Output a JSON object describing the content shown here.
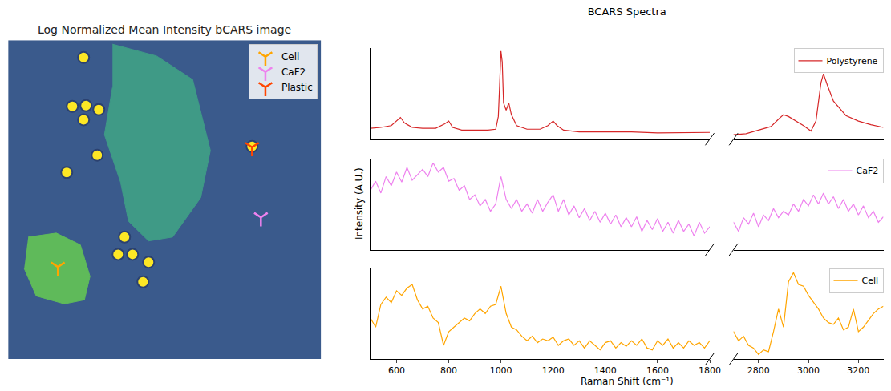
{
  "chart_data": [
    {
      "type": "scatter",
      "title": "Log Normalized Mean Intensity bCARS image",
      "xlim": [
        0,
        390
      ],
      "ylim": [
        405,
        0
      ],
      "tick_labels": false,
      "color": "#3a5a8c",
      "legend": "upper right",
      "regions": [
        {
          "x": [
            130,
            185,
            230,
            252,
            240,
            205,
            175,
            150,
            140,
            120,
            130
          ],
          "y": [
            5,
            20,
            50,
            140,
            200,
            250,
            255,
            230,
            180,
            120,
            60
          ],
          "color": "#3f9a86"
        },
        {
          "x": [
            25,
            60,
            90,
            102,
            95,
            70,
            35,
            20
          ],
          "y": [
            250,
            245,
            260,
            300,
            330,
            335,
            325,
            290
          ],
          "color": "#5fba5a"
        }
      ],
      "beads": {
        "x": [
          94,
          80,
          97,
          113,
          94,
          111,
          73,
          304,
          145,
          137,
          155,
          175,
          168
        ],
        "y": [
          22,
          84,
          83,
          88,
          101,
          146,
          168,
          135,
          250,
          272,
          272,
          282,
          307
        ],
        "color": "#fde725"
      },
      "series": [
        {
          "name": "Cell",
          "color": "#ffa500",
          "marker": "tri_down",
          "x": [
            62
          ],
          "y": [
            288
          ]
        },
        {
          "name": "CaF2",
          "color": "#ee82ee",
          "marker": "tri_down",
          "x": [
            315
          ],
          "y": [
            225
          ]
        },
        {
          "name": "Plastic",
          "color": "#ff4500",
          "marker": "tri_down",
          "x": [
            304
          ],
          "y": [
            136
          ]
        }
      ]
    },
    {
      "type": "line",
      "title": "BCARS Spectra",
      "x_label": "Raman Shift (cm⁻¹)",
      "y_label": "Intensity (A.U.)",
      "segments": [
        {
          "xlim": [
            500,
            1800
          ],
          "xticks": [
            600,
            800,
            1000,
            1200,
            1400,
            1600,
            1800
          ]
        },
        {
          "xlim": [
            2700,
            3300
          ],
          "xticks": [
            2800,
            3000,
            3200
          ]
        }
      ],
      "ylim": [
        0,
        1
      ],
      "tick_labels": "x",
      "legend": "upper right",
      "series": [
        {
          "name": "Polystyrene",
          "color": "#d62728",
          "x": [
            500,
            540,
            580,
            600,
            615,
            630,
            660,
            700,
            750,
            785,
            800,
            815,
            850,
            900,
            950,
            980,
            990,
            995,
            1000,
            1005,
            1010,
            1020,
            1030,
            1040,
            1060,
            1100,
            1150,
            1180,
            1200,
            1215,
            1240,
            1300,
            1400,
            1500,
            1600,
            1700,
            1800,
            2700,
            2750,
            2800,
            2850,
            2880,
            2900,
            2920,
            2950,
            2980,
            3010,
            3030,
            3050,
            3060,
            3075,
            3100,
            3150,
            3200,
            3250,
            3300
          ],
          "values": [
            0.12,
            0.13,
            0.15,
            0.2,
            0.24,
            0.18,
            0.13,
            0.12,
            0.12,
            0.17,
            0.2,
            0.13,
            0.1,
            0.1,
            0.1,
            0.11,
            0.25,
            0.6,
            0.97,
            0.85,
            0.4,
            0.32,
            0.4,
            0.27,
            0.15,
            0.11,
            0.11,
            0.15,
            0.2,
            0.15,
            0.1,
            0.08,
            0.08,
            0.08,
            0.07,
            0.07,
            0.07,
            0.05,
            0.06,
            0.1,
            0.14,
            0.22,
            0.27,
            0.25,
            0.2,
            0.15,
            0.09,
            0.2,
            0.62,
            0.72,
            0.6,
            0.42,
            0.26,
            0.2,
            0.16,
            0.13
          ]
        },
        {
          "name": "CaF2",
          "color": "#ee82ee",
          "x": [
            500,
            520,
            540,
            560,
            580,
            600,
            620,
            640,
            660,
            680,
            700,
            720,
            740,
            760,
            780,
            800,
            820,
            840,
            860,
            880,
            900,
            920,
            940,
            960,
            980,
            1000,
            1020,
            1040,
            1060,
            1080,
            1100,
            1120,
            1140,
            1160,
            1180,
            1200,
            1220,
            1240,
            1260,
            1280,
            1300,
            1320,
            1340,
            1360,
            1380,
            1400,
            1420,
            1440,
            1460,
            1480,
            1500,
            1520,
            1540,
            1560,
            1580,
            1600,
            1620,
            1640,
            1660,
            1680,
            1700,
            1720,
            1740,
            1760,
            1780,
            1800,
            2700,
            2720,
            2740,
            2760,
            2780,
            2800,
            2820,
            2840,
            2860,
            2880,
            2900,
            2920,
            2940,
            2960,
            2980,
            3000,
            3020,
            3040,
            3060,
            3080,
            3100,
            3120,
            3140,
            3160,
            3180,
            3200,
            3220,
            3240,
            3260,
            3280,
            3300
          ],
          "values": [
            0.65,
            0.75,
            0.62,
            0.8,
            0.7,
            0.85,
            0.74,
            0.9,
            0.76,
            0.82,
            0.88,
            0.8,
            0.95,
            0.85,
            0.9,
            0.75,
            0.78,
            0.65,
            0.7,
            0.55,
            0.6,
            0.48,
            0.55,
            0.42,
            0.5,
            0.8,
            0.55,
            0.45,
            0.55,
            0.42,
            0.5,
            0.4,
            0.55,
            0.42,
            0.52,
            0.6,
            0.42,
            0.55,
            0.38,
            0.48,
            0.35,
            0.45,
            0.32,
            0.42,
            0.3,
            0.4,
            0.28,
            0.38,
            0.25,
            0.35,
            0.25,
            0.36,
            0.2,
            0.32,
            0.22,
            0.34,
            0.2,
            0.3,
            0.18,
            0.32,
            0.2,
            0.28,
            0.15,
            0.3,
            0.18,
            0.25,
            0.3,
            0.2,
            0.35,
            0.28,
            0.4,
            0.25,
            0.38,
            0.32,
            0.45,
            0.35,
            0.42,
            0.38,
            0.5,
            0.42,
            0.55,
            0.48,
            0.6,
            0.5,
            0.62,
            0.5,
            0.58,
            0.45,
            0.55,
            0.42,
            0.5,
            0.38,
            0.48,
            0.35,
            0.42,
            0.3,
            0.36
          ]
        },
        {
          "name": "Cell",
          "color": "#ffa500",
          "x": [
            500,
            520,
            540,
            560,
            580,
            600,
            620,
            640,
            660,
            680,
            700,
            720,
            740,
            760,
            780,
            800,
            820,
            840,
            860,
            880,
            900,
            920,
            940,
            960,
            980,
            1000,
            1020,
            1040,
            1060,
            1080,
            1100,
            1120,
            1140,
            1160,
            1180,
            1200,
            1220,
            1240,
            1260,
            1280,
            1300,
            1320,
            1340,
            1360,
            1380,
            1400,
            1420,
            1440,
            1460,
            1480,
            1500,
            1520,
            1540,
            1560,
            1580,
            1600,
            1620,
            1640,
            1660,
            1680,
            1700,
            1720,
            1740,
            1760,
            1780,
            1800,
            2700,
            2720,
            2740,
            2760,
            2780,
            2800,
            2820,
            2840,
            2860,
            2880,
            2900,
            2920,
            2940,
            2960,
            2980,
            3000,
            3020,
            3040,
            3060,
            3080,
            3100,
            3120,
            3140,
            3160,
            3180,
            3200,
            3220,
            3240,
            3260,
            3280,
            3300
          ],
          "values": [
            0.45,
            0.35,
            0.6,
            0.68,
            0.62,
            0.75,
            0.7,
            0.78,
            0.82,
            0.65,
            0.55,
            0.58,
            0.45,
            0.4,
            0.15,
            0.3,
            0.35,
            0.4,
            0.45,
            0.42,
            0.5,
            0.55,
            0.5,
            0.58,
            0.6,
            0.8,
            0.5,
            0.35,
            0.32,
            0.25,
            0.2,
            0.25,
            0.18,
            0.22,
            0.2,
            0.24,
            0.15,
            0.2,
            0.22,
            0.15,
            0.2,
            0.12,
            0.2,
            0.15,
            0.1,
            0.18,
            0.2,
            0.12,
            0.18,
            0.14,
            0.2,
            0.15,
            0.22,
            0.12,
            0.1,
            0.2,
            0.15,
            0.22,
            0.12,
            0.18,
            0.12,
            0.2,
            0.15,
            0.18,
            0.12,
            0.2,
            0.3,
            0.2,
            0.25,
            0.15,
            0.12,
            0.05,
            0.1,
            0.08,
            0.3,
            0.55,
            0.35,
            0.85,
            0.95,
            0.82,
            0.8,
            0.7,
            0.62,
            0.55,
            0.45,
            0.4,
            0.38,
            0.45,
            0.32,
            0.35,
            0.55,
            0.3,
            0.35,
            0.42,
            0.5,
            0.55,
            0.58
          ]
        }
      ]
    }
  ]
}
